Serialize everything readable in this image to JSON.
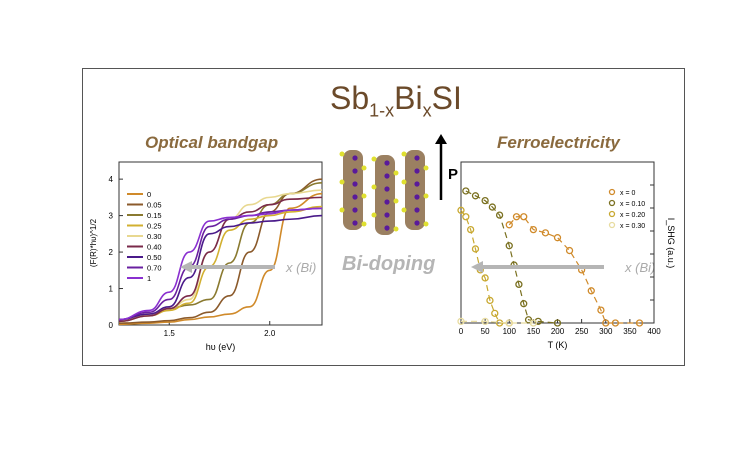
{
  "title": {
    "main": "Sb",
    "sub1": "1-x",
    "mid": "Bi",
    "sub2": "x",
    "end": "SI"
  },
  "labels": {
    "left_title": "Optical bandgap",
    "right_title": "Ferroelectricity",
    "center": "Bi-doping",
    "arrow_label": "x (Bi)",
    "polarization": "P"
  },
  "colors": {
    "frame": "#555555",
    "title": "#8a6a3e",
    "arrow": "#b5b5b5"
  },
  "chart_data": [
    {
      "type": "line",
      "title": "Optical bandgap",
      "xlabel": "hυ (eV)",
      "ylabel": "(F(R)*hυ)^1/2",
      "xlim": [
        1.25,
        2.26
      ],
      "ylim": [
        0,
        4.47
      ],
      "xticks": [
        1.5,
        2.0
      ],
      "xtick_labels": [
        "1.5",
        "2.0"
      ],
      "yticks": [
        0,
        1,
        2,
        3,
        4
      ],
      "ytick_labels": [
        "0",
        "1",
        "2",
        "3",
        "4"
      ],
      "legend_position": "top-left",
      "x": [
        1.25,
        1.4,
        1.5,
        1.6,
        1.7,
        1.8,
        1.9,
        2.0,
        2.1,
        2.26
      ],
      "series": [
        {
          "name": "0",
          "color": "#d08a2a",
          "values": [
            0.02,
            0.05,
            0.08,
            0.15,
            0.22,
            0.3,
            0.5,
            1.5,
            3.2,
            3.6
          ]
        },
        {
          "name": "0.05",
          "color": "#8b5a2b",
          "values": [
            0.05,
            0.08,
            0.12,
            0.2,
            0.35,
            0.8,
            2.0,
            3.1,
            3.6,
            4.0
          ]
        },
        {
          "name": "0.15",
          "color": "#8a7a30",
          "values": [
            0.1,
            0.3,
            0.45,
            0.55,
            0.7,
            1.7,
            2.8,
            3.3,
            3.6,
            3.9
          ]
        },
        {
          "name": "0.25",
          "color": "#d2b030",
          "values": [
            0.1,
            0.25,
            0.4,
            0.6,
            1.6,
            2.6,
            2.9,
            3.0,
            3.1,
            3.25
          ]
        },
        {
          "name": "0.30",
          "color": "#e8d890",
          "values": [
            0.1,
            0.3,
            0.45,
            0.7,
            2.0,
            2.9,
            3.3,
            3.5,
            3.6,
            3.7
          ]
        },
        {
          "name": "0.40",
          "color": "#7a2a4a",
          "values": [
            0.1,
            0.25,
            0.45,
            0.8,
            2.0,
            2.9,
            3.1,
            3.3,
            3.45,
            3.5
          ]
        },
        {
          "name": "0.50",
          "color": "#4a1a8a",
          "values": [
            0.15,
            0.3,
            0.5,
            1.3,
            2.5,
            2.7,
            2.8,
            2.85,
            2.9,
            3.0
          ]
        },
        {
          "name": "0.70",
          "color": "#6a20a0",
          "values": [
            0.15,
            0.35,
            0.7,
            1.6,
            2.7,
            2.9,
            3.0,
            3.1,
            3.15,
            3.2
          ]
        },
        {
          "name": "1",
          "color": "#8a30d0",
          "values": [
            0.15,
            0.4,
            0.9,
            2.0,
            2.85,
            2.95,
            3.0,
            3.05,
            3.15,
            3.2
          ]
        }
      ]
    },
    {
      "type": "scatter",
      "title": "Ferroelectricity",
      "xlabel": "T (K)",
      "ylabel": "I_SHG (a.u.)",
      "xlim": [
        0,
        400
      ],
      "ylim": [
        0,
        1
      ],
      "xticks": [
        0,
        50,
        100,
        150,
        200,
        250,
        300,
        350,
        400
      ],
      "xtick_labels": [
        "0",
        "50",
        "100",
        "150",
        "200",
        "250",
        "300",
        "350",
        "400"
      ],
      "legend_position": "top-right",
      "series": [
        {
          "name": "x = 0",
          "color": "#d08a2a",
          "x": [
            100,
            115,
            130,
            150,
            175,
            200,
            225,
            250,
            270,
            290,
            300,
            320,
            370
          ],
          "y": [
            0.61,
            0.66,
            0.66,
            0.58,
            0.56,
            0.53,
            0.45,
            0.33,
            0.2,
            0.08,
            0,
            0,
            0
          ]
        },
        {
          "name": "x = 0.10",
          "color": "#7a7020",
          "x": [
            10,
            30,
            50,
            65,
            80,
            100,
            110,
            120,
            130,
            140,
            160,
            200
          ],
          "y": [
            0.82,
            0.79,
            0.76,
            0.72,
            0.67,
            0.48,
            0.36,
            0.24,
            0.12,
            0.02,
            0.01,
            0
          ]
        },
        {
          "name": "x = 0.20",
          "color": "#c8a830",
          "x": [
            0,
            10,
            20,
            30,
            40,
            50,
            60,
            70,
            80,
            100
          ],
          "y": [
            0.7,
            0.66,
            0.58,
            0.46,
            0.33,
            0.28,
            0.14,
            0.06,
            0,
            0
          ]
        },
        {
          "name": "x = 0.30",
          "color": "#e8dca0",
          "x": [
            0,
            50,
            100,
            150
          ],
          "y": [
            0.01,
            0.01,
            0,
            0
          ]
        }
      ]
    }
  ]
}
